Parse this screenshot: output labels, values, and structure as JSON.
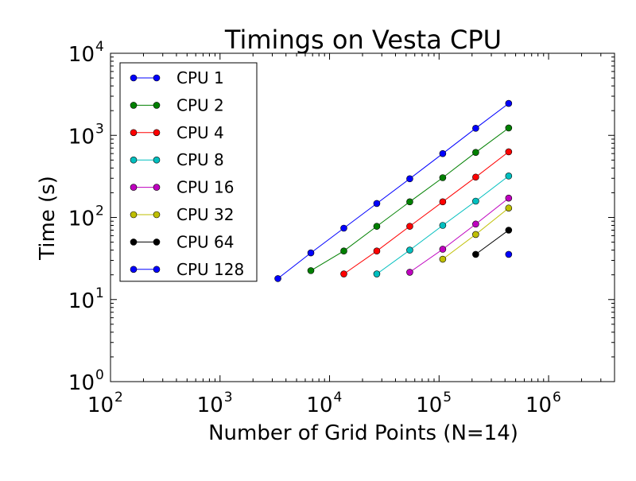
{
  "chart_data": {
    "type": "line",
    "title": "Timings on Vesta CPU",
    "xlabel": "Number of Grid Points (N=14)",
    "ylabel": "Time (s)",
    "x_scale": "log",
    "y_scale": "log",
    "xlim": [
      100,
      4000000
    ],
    "ylim": [
      1,
      10000
    ],
    "grid": false,
    "legend_position": "top-left",
    "x_ticks": [
      {
        "value": 100,
        "base": "10",
        "exp": "2"
      },
      {
        "value": 1000,
        "base": "10",
        "exp": "3"
      },
      {
        "value": 10000,
        "base": "10",
        "exp": "4"
      },
      {
        "value": 100000,
        "base": "10",
        "exp": "5"
      },
      {
        "value": 1000000,
        "base": "10",
        "exp": "6"
      }
    ],
    "y_ticks": [
      {
        "value": 1,
        "base": "10",
        "exp": "0"
      },
      {
        "value": 10,
        "base": "10",
        "exp": "1"
      },
      {
        "value": 100,
        "base": "10",
        "exp": "2"
      },
      {
        "value": 1000,
        "base": "10",
        "exp": "3"
      },
      {
        "value": 10000,
        "base": "10",
        "exp": "4"
      }
    ],
    "series": [
      {
        "name": "CPU 1",
        "color": "#0000ff",
        "x": [
          3375,
          6750,
          13500,
          27000,
          54000,
          108000,
          216000,
          432000
        ],
        "y": [
          18,
          37,
          74,
          148,
          296,
          600,
          1220,
          2450
        ]
      },
      {
        "name": "CPU 2",
        "color": "#008000",
        "x": [
          6750,
          13500,
          27000,
          54000,
          108000,
          216000,
          432000
        ],
        "y": [
          22.5,
          39,
          78,
          155,
          305,
          620,
          1230
        ]
      },
      {
        "name": "CPU 4",
        "color": "#ff0000",
        "x": [
          13500,
          27000,
          54000,
          108000,
          216000,
          432000
        ],
        "y": [
          20.5,
          39,
          78,
          155,
          310,
          630
        ]
      },
      {
        "name": "CPU 8",
        "color": "#00bfbf",
        "x": [
          27000,
          54000,
          108000,
          216000,
          432000
        ],
        "y": [
          20.5,
          40,
          80,
          158,
          320
        ]
      },
      {
        "name": "CPU 16",
        "color": "#bf00bf",
        "x": [
          54000,
          108000,
          216000,
          432000
        ],
        "y": [
          21.5,
          41,
          83,
          172
        ]
      },
      {
        "name": "CPU 32",
        "color": "#bfbf00",
        "x": [
          108000,
          216000,
          432000
        ],
        "y": [
          31,
          62,
          130
        ]
      },
      {
        "name": "CPU 64",
        "color": "#000000",
        "x": [
          216000,
          432000
        ],
        "y": [
          35.5,
          70
        ]
      },
      {
        "name": "CPU 128",
        "color": "#0000ff",
        "x": [
          432000
        ],
        "y": [
          35.5
        ]
      }
    ]
  }
}
